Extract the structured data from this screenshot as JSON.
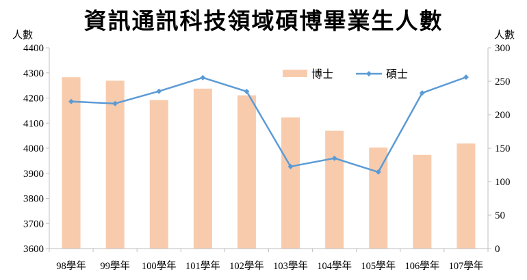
{
  "chart_data": {
    "type": "bar+line",
    "title": "資訊通訊科技領域碩博畢業生人數",
    "y_left_label": "人數",
    "y_right_label": "人數",
    "categories": [
      "98學年",
      "99學年",
      "100學年",
      "101學年",
      "102學年",
      "103學年",
      "104學年",
      "105學年",
      "106學年",
      "107學年"
    ],
    "series": [
      {
        "name": "博士",
        "type": "bar",
        "axis": "right",
        "color": "#F8CBAD",
        "values": [
          256,
          251,
          222,
          239,
          229,
          196,
          176,
          151,
          140,
          157
        ]
      },
      {
        "name": "碩士",
        "type": "line",
        "axis": "left",
        "color": "#5B9BD5",
        "values": [
          4186,
          4178,
          4227,
          4281,
          4226,
          3927,
          3960,
          3905,
          4220,
          4283
        ]
      }
    ],
    "ylim_left": [
      3600,
      4400
    ],
    "yticks_left": [
      3600,
      3700,
      3800,
      3900,
      4000,
      4100,
      4200,
      4300,
      4400
    ],
    "ylim_right": [
      0,
      300
    ],
    "yticks_right": [
      0,
      50,
      100,
      150,
      200,
      250,
      300
    ],
    "grid": false,
    "legend_position": "top-right"
  }
}
